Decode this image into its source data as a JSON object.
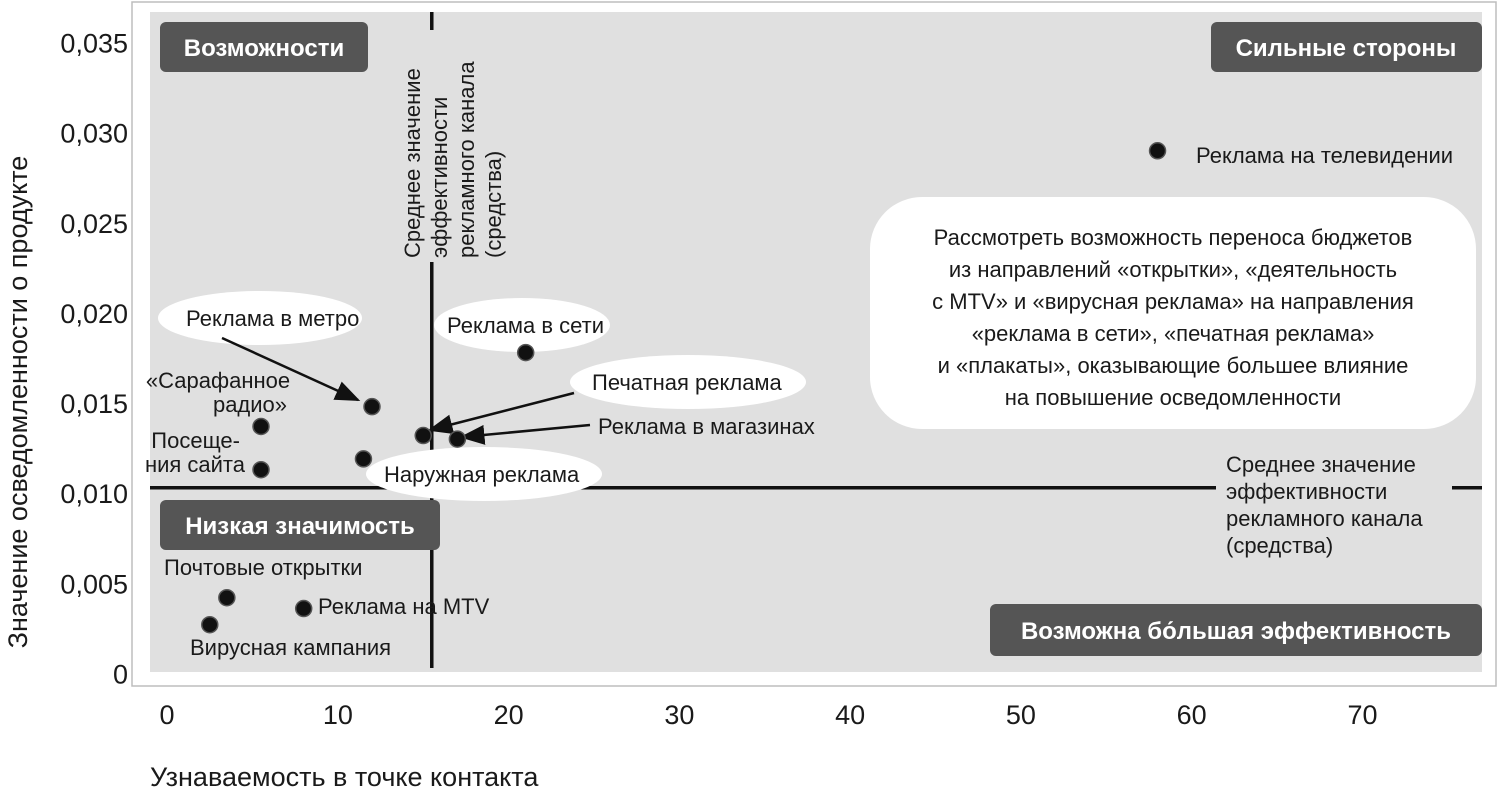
{
  "chart_data": {
    "type": "scatter",
    "xlabel": "Узнаваемость в точке контакта",
    "ylabel": "Значение осведомленности о продукте",
    "xlim": [
      -1,
      77
    ],
    "ylim": [
      -0.0007,
      0.0367
    ],
    "x_ticks": [
      {
        "value": 0,
        "label": "0"
      },
      {
        "value": 10,
        "label": "10"
      },
      {
        "value": 20,
        "label": "20"
      },
      {
        "value": 30,
        "label": "30"
      },
      {
        "value": 40,
        "label": "40"
      },
      {
        "value": 50,
        "label": "50"
      },
      {
        "value": 60,
        "label": "60"
      },
      {
        "value": 70,
        "label": "70"
      }
    ],
    "y_ticks": [
      {
        "value": 0,
        "label": "0"
      },
      {
        "value": 0.005,
        "label": "0,005"
      },
      {
        "value": 0.01,
        "label": "0,010"
      },
      {
        "value": 0.015,
        "label": "0,015"
      },
      {
        "value": 0.02,
        "label": "0,020"
      },
      {
        "value": 0.025,
        "label": "0,025"
      },
      {
        "value": 0.03,
        "label": "0,030"
      },
      {
        "value": 0.035,
        "label": "0,035"
      }
    ],
    "points": [
      {
        "label": "Реклама на телевидении",
        "x": 58,
        "y": 0.029
      },
      {
        "label": "Реклама в сети",
        "x": 21,
        "y": 0.0178
      },
      {
        "label": "Реклама в метро",
        "x": 12,
        "y": 0.0148
      },
      {
        "label": "Печатная реклама",
        "x": 15,
        "y": 0.0132
      },
      {
        "label": "Реклама в магазинах",
        "x": 17,
        "y": 0.013
      },
      {
        "label": "Наружная реклама",
        "x": 11.5,
        "y": 0.0119
      },
      {
        "label": "«Сарафанное радио»",
        "x": 5.5,
        "y": 0.0137
      },
      {
        "label": "Посещения сайта",
        "x": 5.5,
        "y": 0.0113
      },
      {
        "label": "Почтовые открытки",
        "x": 3.5,
        "y": 0.0042
      },
      {
        "label": "Реклама на MTV",
        "x": 8,
        "y": 0.0036
      },
      {
        "label": "Вирусная кампания",
        "x": 2.5,
        "y": 0.0027
      }
    ],
    "reference_lines": {
      "vertical_x": 15.5,
      "horizontal_y": 0.0103,
      "vertical_label": [
        "Среднее значение",
        "эффективности",
        "рекламного канала",
        "(средства)"
      ],
      "horizontal_label": [
        "Среднее значение",
        "эффективности",
        "рекламного канала",
        "(средства)"
      ]
    },
    "quadrants": [
      {
        "label": "Возможности",
        "position": "top-left"
      },
      {
        "label": "Сильные стороны",
        "position": "top-right"
      },
      {
        "label": "Низкая значимость",
        "position": "bottom-left"
      },
      {
        "label": "Возможна бо́льшая эффективность",
        "position": "bottom-right"
      }
    ],
    "annotation": [
      "Рассмотреть возможность переноса бюджетов",
      "из направлений «открытки», «деятельность",
      "с MTV» и «вирусная реклама» на направления",
      "«реклама в сети», «печатная реклама»",
      "и «плакаты», оказывающие большее влияние",
      "на повышение осведомленности"
    ],
    "grid": false,
    "colors": {
      "plot_background": "#e0e0e0",
      "point": "#111111",
      "quadrant_label_bg": "#555555",
      "callout_bg": "#ffffff"
    }
  }
}
